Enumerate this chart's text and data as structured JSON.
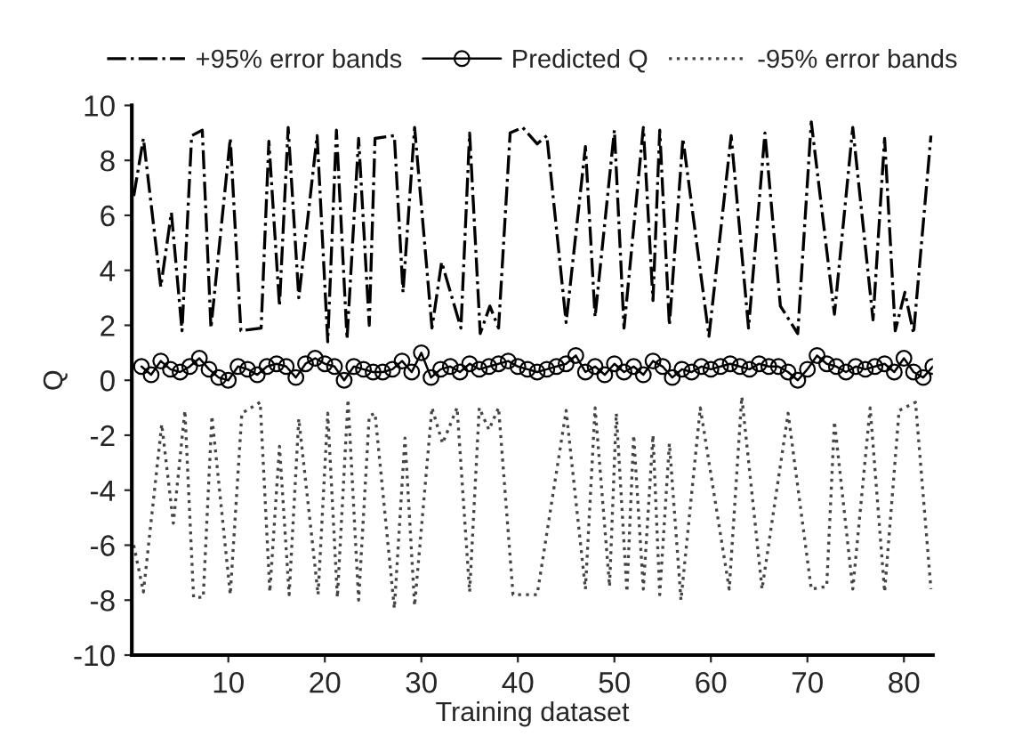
{
  "chart_data": {
    "type": "line",
    "xlabel": "Training dataset",
    "ylabel": "Q",
    "xlim": [
      0,
      83
    ],
    "xticks": [
      10,
      20,
      30,
      40,
      50,
      60,
      70,
      80
    ],
    "ylim": [
      -10,
      10
    ],
    "yticks": [
      -10,
      -8,
      -6,
      -4,
      -2,
      0,
      2,
      4,
      6,
      8,
      10
    ],
    "grid": false,
    "legend": "top",
    "series": [
      {
        "name": "+95% error bands",
        "color": "#000000",
        "line_style": "dashdot",
        "marker": "none",
        "x": [
          0.2,
          1.2,
          3.0,
          4.1,
          5.2,
          6.2,
          7.3,
          8.2,
          10.2,
          11.3,
          13.4,
          14.2,
          15.3,
          16.2,
          17.3,
          19.2,
          20.3,
          21.2,
          22.3,
          23.5,
          24.6,
          25.2,
          27.2,
          28.1,
          29.3,
          31.1,
          32.1,
          34.1,
          35.0,
          36.1,
          37.1,
          38.0,
          39.2,
          40.5,
          42.0,
          43.0,
          45.0,
          47.0,
          48.0,
          50.0,
          51.0,
          53.0,
          54.0,
          54.7,
          55.7,
          57.1,
          59.8,
          62.1,
          63.9,
          65.6,
          67.2,
          69.0,
          70.4,
          72.8,
          74.7,
          76.8,
          78.0,
          79.1,
          80.1,
          81.0,
          82.8
        ],
        "values": [
          6.7,
          8.8,
          3.4,
          6.1,
          1.8,
          8.9,
          9.1,
          1.9,
          8.8,
          1.8,
          1.9,
          8.7,
          2.7,
          9.2,
          3.0,
          8.9,
          1.4,
          9.1,
          1.5,
          8.8,
          2.0,
          8.8,
          8.9,
          3.2,
          9.2,
          1.9,
          4.3,
          1.9,
          9.0,
          1.7,
          2.7,
          1.9,
          9.0,
          9.2,
          8.6,
          8.9,
          2.1,
          8.5,
          2.3,
          9.1,
          1.9,
          9.2,
          2.9,
          9.1,
          2.0,
          8.8,
          1.6,
          8.9,
          1.9,
          9.0,
          2.7,
          1.7,
          9.4,
          2.4,
          9.2,
          2.2,
          8.8,
          1.8,
          3.2,
          1.7,
          8.9
        ]
      },
      {
        "name": "Predicted Q",
        "color": "#000000",
        "line_style": "solid",
        "marker": "circle",
        "x": [
          1,
          2,
          3,
          4,
          5,
          6,
          7,
          8,
          9,
          10,
          11,
          12,
          13,
          14,
          15,
          16,
          17,
          18,
          19,
          20,
          21,
          22,
          23,
          24,
          25,
          26,
          27,
          28,
          29,
          30,
          31,
          32,
          33,
          34,
          35,
          36,
          37,
          38,
          39,
          40,
          41,
          42,
          43,
          44,
          45,
          46,
          47,
          48,
          49,
          50,
          51,
          52,
          53,
          54,
          55,
          56,
          57,
          58,
          59,
          60,
          61,
          62,
          63,
          64,
          65,
          66,
          67,
          68,
          69,
          70,
          71,
          72,
          73,
          74,
          75,
          76,
          77,
          78,
          79,
          80,
          81,
          82,
          83
        ],
        "values": [
          0.5,
          0.2,
          0.7,
          0.4,
          0.3,
          0.5,
          0.8,
          0.4,
          0.1,
          0.0,
          0.5,
          0.4,
          0.2,
          0.5,
          0.6,
          0.5,
          0.1,
          0.6,
          0.8,
          0.6,
          0.5,
          0.0,
          0.5,
          0.4,
          0.3,
          0.3,
          0.4,
          0.7,
          0.3,
          1.0,
          0.1,
          0.4,
          0.5,
          0.3,
          0.6,
          0.4,
          0.5,
          0.6,
          0.7,
          0.5,
          0.4,
          0.3,
          0.4,
          0.5,
          0.6,
          0.9,
          0.3,
          0.5,
          0.2,
          0.6,
          0.3,
          0.5,
          0.2,
          0.7,
          0.5,
          0.1,
          0.4,
          0.3,
          0.5,
          0.4,
          0.5,
          0.6,
          0.5,
          0.4,
          0.6,
          0.5,
          0.5,
          0.3,
          0.0,
          0.4,
          0.9,
          0.6,
          0.5,
          0.3,
          0.5,
          0.4,
          0.5,
          0.6,
          0.3,
          0.8,
          0.3,
          0.1,
          0.5
        ]
      },
      {
        "name": "-95% error bands",
        "color": "#444444",
        "line_style": "dotted",
        "marker": "none",
        "x": [
          0.2,
          1.2,
          3.1,
          4.3,
          5.5,
          6.4,
          7.4,
          8.3,
          10.2,
          11.4,
          13.3,
          14.3,
          15.3,
          16.3,
          17.3,
          19.3,
          20.3,
          21.3,
          22.4,
          23.5,
          24.6,
          25.2,
          27.2,
          28.3,
          29.3,
          31.1,
          32.2,
          33.7,
          35.0,
          36.0,
          37.0,
          38.0,
          39.5,
          42.0,
          45.0,
          47.0,
          48.0,
          49.5,
          50.2,
          51.3,
          52.0,
          53.0,
          54.0,
          54.7,
          55.7,
          56.9,
          58.9,
          61.9,
          63.2,
          65.3,
          68.0,
          70.4,
          72.0,
          72.8,
          74.7,
          76.5,
          78.0,
          79.5,
          81.2,
          82.8
        ],
        "values": [
          -6.0,
          -7.7,
          -1.6,
          -5.2,
          -1.1,
          -7.9,
          -7.9,
          -1.3,
          -7.8,
          -1.2,
          -0.8,
          -7.7,
          -2.4,
          -7.8,
          -1.4,
          -7.8,
          -1.2,
          -7.9,
          -0.7,
          -8.0,
          -1.3,
          -1.2,
          -8.3,
          -2.1,
          -8.2,
          -1.0,
          -2.3,
          -1.0,
          -7.7,
          -1.0,
          -1.8,
          -1.0,
          -7.8,
          -7.8,
          -1.1,
          -7.6,
          -1.0,
          -7.5,
          -1.2,
          -7.7,
          -2.0,
          -7.6,
          -2.0,
          -7.8,
          -2.3,
          -8.0,
          -1.0,
          -7.6,
          -0.6,
          -7.6,
          -1.2,
          -7.6,
          -7.5,
          -1.5,
          -7.6,
          -1.0,
          -7.7,
          -1.1,
          -0.8,
          -7.6
        ]
      }
    ]
  }
}
